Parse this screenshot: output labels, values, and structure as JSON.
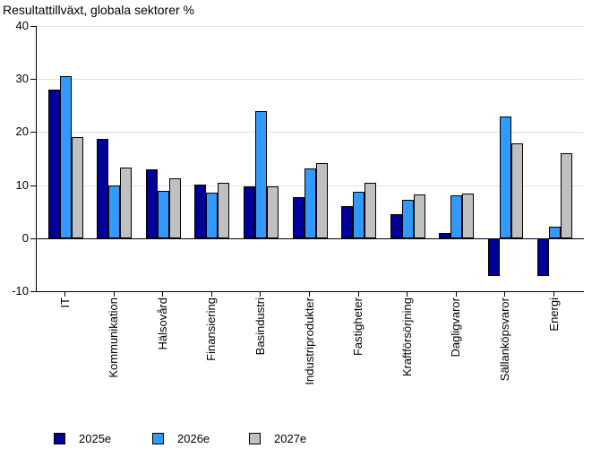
{
  "title": "Resultattillväxt, globala sektorer %",
  "colors": {
    "series_2025": "#000099",
    "series_2026": "#3399ff",
    "series_2027": "#c0c0c0",
    "gridline": "#e0e0e0",
    "axis": "#000000",
    "background": "#ffffff"
  },
  "legend": {
    "items": [
      "2025e",
      "2026e",
      "2027e"
    ]
  },
  "chart_data": {
    "type": "bar",
    "title": "Resultattillväxt, globala sektorer %",
    "categories": [
      "IT",
      "Kommunikation",
      "Hälsovård",
      "Finansiering",
      "Basindustri",
      "Industriprodukter",
      "Fastigheter",
      "Kraftförsörjning",
      "Dagligvaror",
      "Sällanköpsvaror",
      "Energi"
    ],
    "series": [
      {
        "name": "2025e",
        "color": "#000099",
        "values": [
          28,
          18.8,
          13,
          10.1,
          9.7,
          7.8,
          6,
          4.5,
          0.9,
          -7.1,
          -7.2
        ]
      },
      {
        "name": "2026e",
        "color": "#3399ff",
        "values": [
          30.5,
          10,
          9,
          8.6,
          24,
          13.2,
          8.7,
          7.2,
          8,
          23,
          2.2
        ]
      },
      {
        "name": "2027e",
        "color": "#c0c0c0",
        "values": [
          19,
          13.3,
          11.3,
          10.5,
          9.8,
          14.1,
          10.4,
          8.2,
          8.4,
          17.9,
          16
        ]
      }
    ],
    "xlabel": "",
    "ylabel": "",
    "ylim": [
      -10,
      40
    ],
    "yticks": [
      40,
      30,
      20,
      10,
      0,
      -10
    ],
    "grid": true,
    "legend_position": "bottom"
  }
}
